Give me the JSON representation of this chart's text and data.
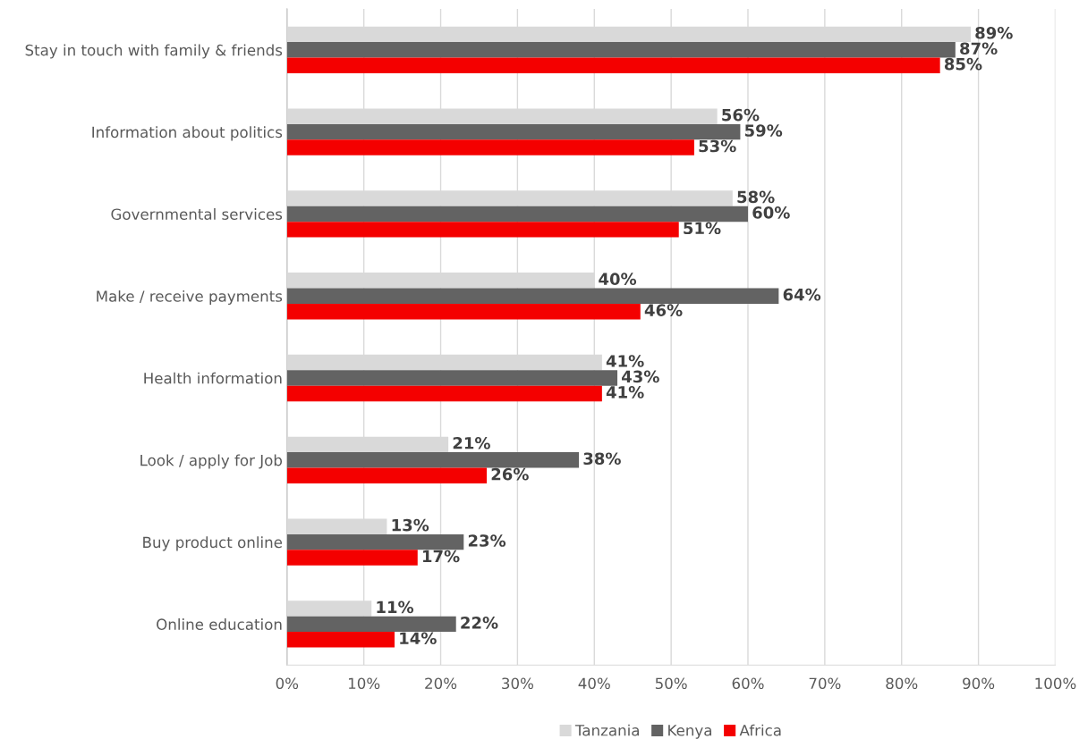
{
  "chart_data": {
    "type": "bar",
    "orientation": "horizontal",
    "categories": [
      "Stay in touch with family & friends",
      "Information about politics",
      "Governmental services",
      "Make / receive payments",
      "Health information",
      "Look / apply for Job",
      "Buy product online",
      "Online education"
    ],
    "series": [
      {
        "name": "Tanzania",
        "color": "#d9d9d9",
        "values": [
          89,
          56,
          58,
          40,
          41,
          21,
          13,
          11
        ],
        "value_labels": [
          "89%",
          "56%",
          "58%",
          "40%",
          "41%",
          "21%",
          "13%",
          "11%"
        ]
      },
      {
        "name": "Kenya",
        "color": "#636363",
        "values": [
          87,
          59,
          60,
          64,
          43,
          38,
          23,
          22
        ],
        "value_labels": [
          "87%",
          "59%",
          "60%",
          "64%",
          "43%",
          "38%",
          "23%",
          "22%"
        ]
      },
      {
        "name": "Africa",
        "color": "#f40000",
        "values": [
          85,
          53,
          51,
          46,
          41,
          26,
          17,
          14
        ],
        "value_labels": [
          "85%",
          "53%",
          "51%",
          "46%",
          "41%",
          "26%",
          "17%",
          "14%"
        ]
      }
    ],
    "xlim": [
      0,
      100
    ],
    "xticks": [
      {
        "value": 0,
        "label": "0%"
      },
      {
        "value": 10,
        "label": "10%"
      },
      {
        "value": 20,
        "label": "20%"
      },
      {
        "value": 30,
        "label": "30%"
      },
      {
        "value": 40,
        "label": "40%"
      },
      {
        "value": 50,
        "label": "50%"
      },
      {
        "value": 60,
        "label": "60%"
      },
      {
        "value": 70,
        "label": "70%"
      },
      {
        "value": 80,
        "label": "80%"
      },
      {
        "value": 90,
        "label": "90%"
      },
      {
        "value": 100,
        "label": "100%"
      }
    ],
    "grid": "x",
    "legend": "bottom"
  }
}
